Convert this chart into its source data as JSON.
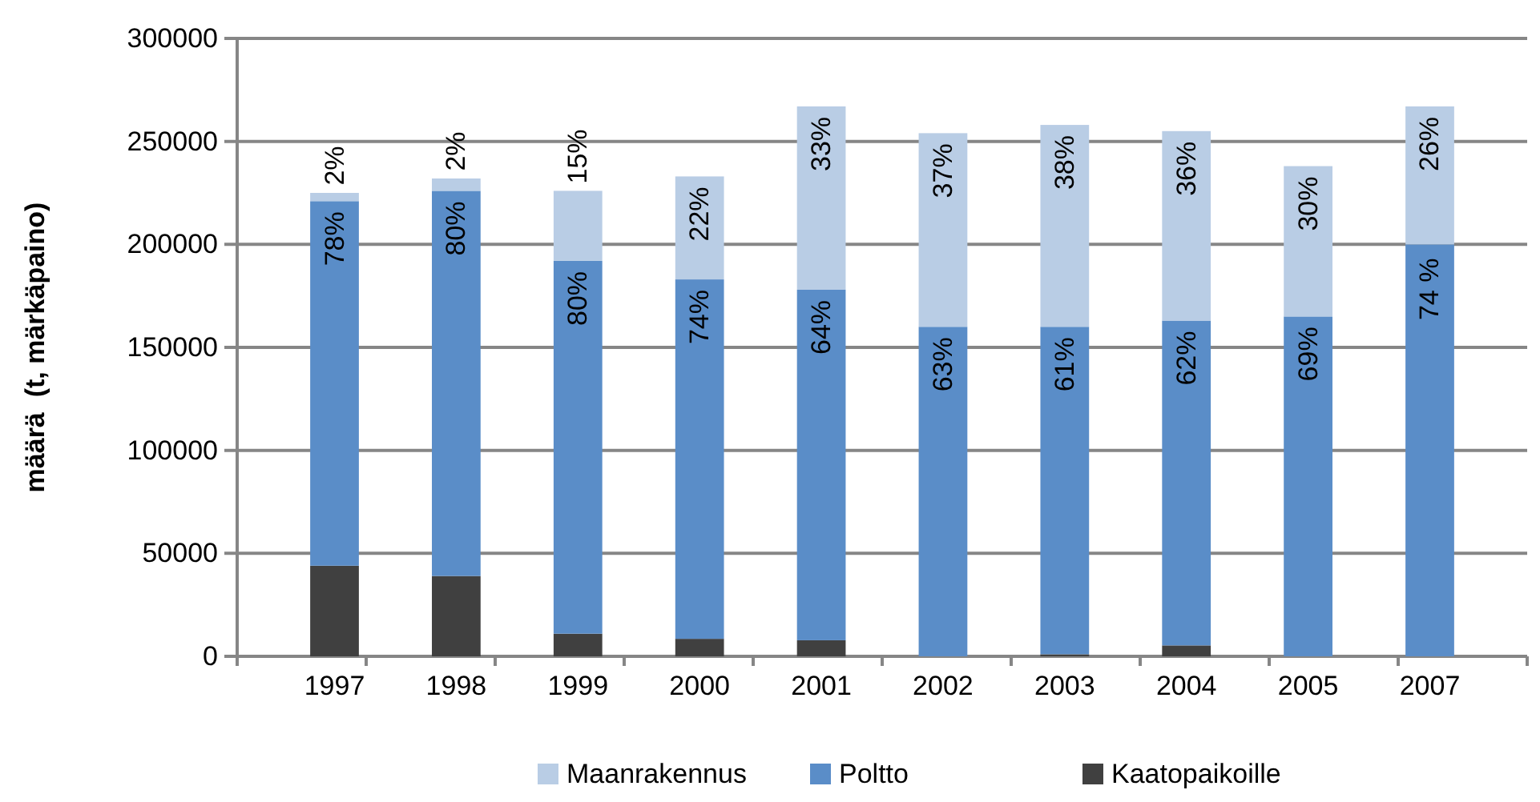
{
  "chart_data": {
    "type": "bar",
    "stacked": true,
    "ylabel": "määrä  (t, märkäpaino)",
    "categories": [
      "1997",
      "1998",
      "1999",
      "2000",
      "2001",
      "2002",
      "2003",
      "2004",
      "2005",
      "2007"
    ],
    "series": [
      {
        "name": "Kaatopaikoille",
        "color": "#404040",
        "values": [
          44000,
          39000,
          11000,
          8500,
          7800,
          0,
          1000,
          5300,
          0,
          0
        ]
      },
      {
        "name": "Poltto",
        "color": "#5a8dc8",
        "values": [
          177000,
          187000,
          181000,
          174500,
          170200,
          160000,
          159000,
          157700,
          165000,
          200000
        ]
      },
      {
        "name": "Maanrakennus",
        "color": "#b9cde5",
        "values": [
          4000,
          6000,
          34000,
          50000,
          89000,
          94000,
          98000,
          92000,
          73000,
          67000
        ]
      }
    ],
    "annotations": [
      {
        "text": "78%",
        "x": "1997",
        "y": 221000
      },
      {
        "text": "80%",
        "x": "1998",
        "y": 226000
      },
      {
        "text": "80%",
        "x": "1999",
        "y": 192000
      },
      {
        "text": "74%",
        "x": "2000",
        "y": 183000
      },
      {
        "text": "64%",
        "x": "2001",
        "y": 178000
      },
      {
        "text": "63%",
        "x": "2002",
        "y": 160000
      },
      {
        "text": "61%",
        "x": "2003",
        "y": 160000
      },
      {
        "text": "62%",
        "x": "2004",
        "y": 163000
      },
      {
        "text": "69%",
        "x": "2005",
        "y": 165000
      },
      {
        "text": "74 %",
        "x": "2007",
        "y": 200000
      },
      {
        "text": "2%",
        "x": "1997",
        "y": 225000
      },
      {
        "text": "2%",
        "x": "1998",
        "y": 232000
      },
      {
        "text": "15%",
        "x": "1999",
        "y": 226000
      },
      {
        "text": "22%",
        "x": "2000",
        "y": 233000
      },
      {
        "text": "33%",
        "x": "2001",
        "y": 267000
      },
      {
        "text": "37%",
        "x": "2002",
        "y": 254000
      },
      {
        "text": "38%",
        "x": "2003",
        "y": 258000
      },
      {
        "text": "36%",
        "x": "2004",
        "y": 255000
      },
      {
        "text": "30%",
        "x": "2005",
        "y": 238000
      },
      {
        "text": "26%",
        "x": "2007",
        "y": 267000
      }
    ],
    "ylim": [
      0,
      300000
    ],
    "yticks": [
      0,
      50000,
      100000,
      150000,
      200000,
      250000,
      300000
    ],
    "grid": "y",
    "legend": "bottom"
  }
}
